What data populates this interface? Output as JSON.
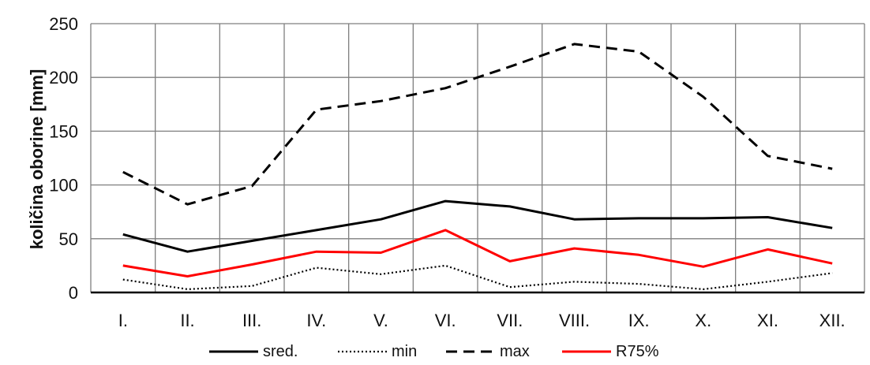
{
  "chart_data": {
    "type": "line",
    "categories": [
      "I.",
      "II.",
      "III.",
      "IV.",
      "V.",
      "VI.",
      "VII.",
      "VIII.",
      "IX.",
      "X.",
      "XI.",
      "XII."
    ],
    "series": [
      {
        "name": "sred.",
        "values": [
          54,
          38,
          48,
          58,
          68,
          85,
          80,
          68,
          69,
          69,
          70,
          60
        ],
        "color": "#000000",
        "dash": "solid"
      },
      {
        "name": "min",
        "values": [
          12,
          3,
          6,
          23,
          17,
          25,
          5,
          10,
          8,
          3,
          10,
          18
        ],
        "color": "#000000",
        "dash": "dotted"
      },
      {
        "name": "max",
        "values": [
          112,
          82,
          99,
          170,
          178,
          190,
          210,
          231,
          224,
          182,
          127,
          115
        ],
        "color": "#000000",
        "dash": "dashed"
      },
      {
        "name": "R75%",
        "values": [
          25,
          15,
          26,
          38,
          37,
          58,
          29,
          41,
          35,
          24,
          40,
          27
        ],
        "color": "#ff0000",
        "dash": "solid"
      }
    ],
    "title": "",
    "xlabel": "",
    "ylabel": "količina oborine [mm]",
    "ylim": [
      0,
      250
    ],
    "yticks": [
      "0",
      "50",
      "100",
      "150",
      "200",
      "250"
    ],
    "grid": true,
    "legend_position": "bottom"
  }
}
